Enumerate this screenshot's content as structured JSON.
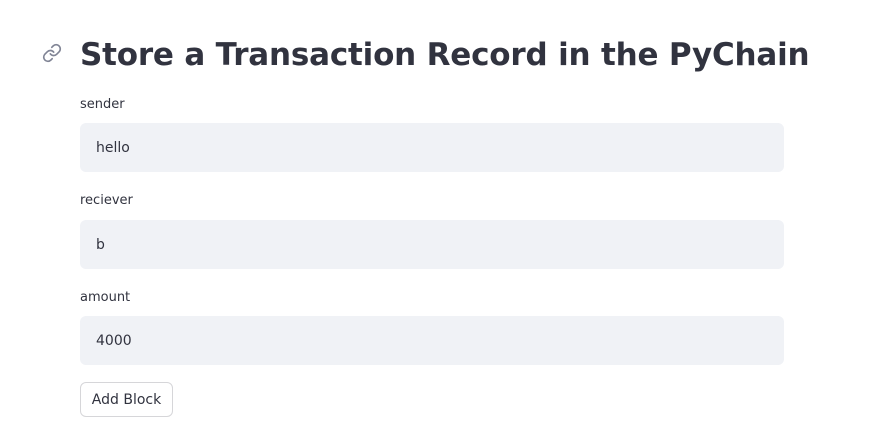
{
  "header": {
    "title": "Store a Transaction Record in the PyChain",
    "anchor_icon": "link-icon"
  },
  "form": {
    "fields": [
      {
        "label": "sender",
        "value": "hello"
      },
      {
        "label": "reciever",
        "value": "b"
      },
      {
        "label": "amount",
        "value": "4000"
      }
    ],
    "submit_label": "Add Block"
  },
  "colors": {
    "text": "#31333f",
    "input_background": "#f0f2f6",
    "button_border": "#d6d6d9",
    "icon": "#808495"
  }
}
